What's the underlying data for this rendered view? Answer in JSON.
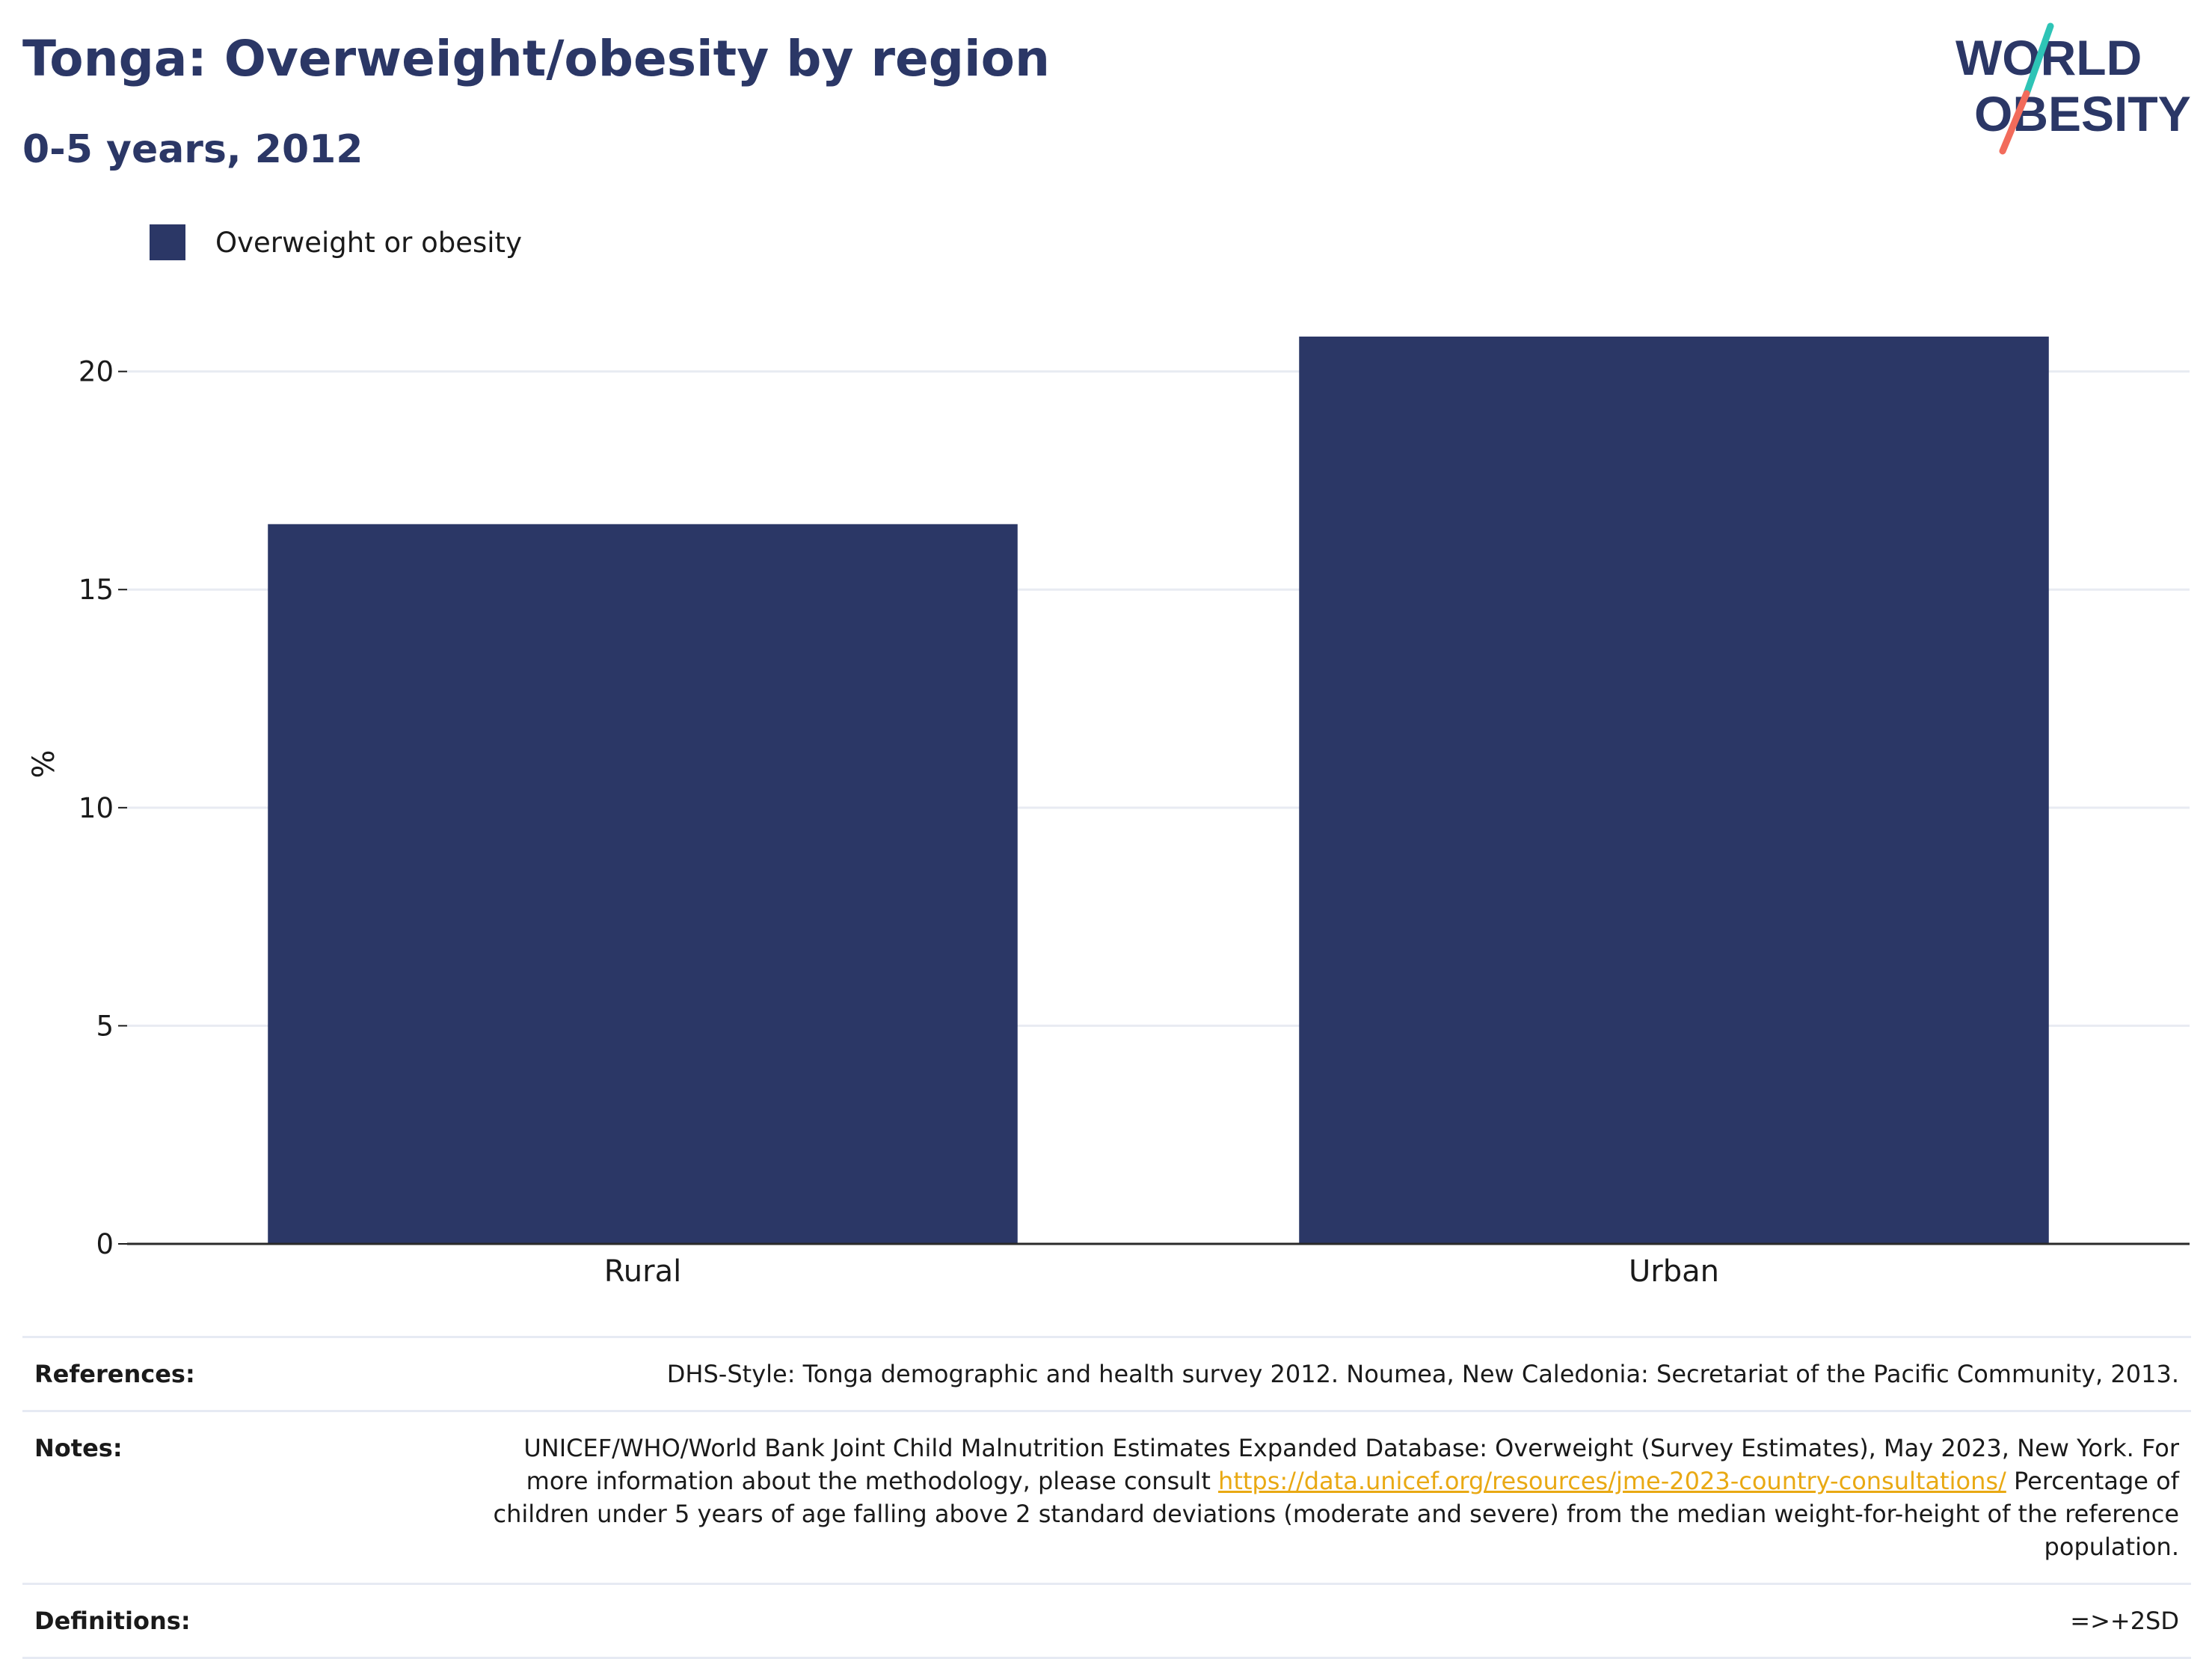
{
  "header": {
    "title": "Tonga: Overweight/obesity by region",
    "subtitle": "0-5 years, 2012"
  },
  "logo": {
    "line1": "WORLD",
    "line2": "OBESITY",
    "colors": {
      "text": "#2b3766",
      "slash_top": "#2ec4b6",
      "slash_bottom": "#f26b5b"
    }
  },
  "legend": {
    "label": "Overweight or obesity",
    "color": "#2b3766"
  },
  "chart_data": {
    "type": "bar",
    "categories": [
      "Rural",
      "Urban"
    ],
    "series": [
      {
        "name": "Overweight or obesity",
        "values": [
          16.5,
          20.8
        ],
        "color": "#2b3766"
      }
    ],
    "ylabel": "%",
    "ylim": [
      0,
      22
    ],
    "yticks": [
      0,
      5,
      10,
      15,
      20
    ],
    "grid": true,
    "legend_position": "top-left"
  },
  "footer": {
    "references_label": "References:",
    "references_text": "DHS-Style: Tonga demographic and health survey 2012. Noumea, New Caledonia: Secretariat of the Pacific Community, 2013.",
    "notes_label": "Notes:",
    "notes_text_1": "UNICEF/WHO/World Bank Joint Child Malnutrition Estimates Expanded Database: Overweight (Survey Estimates), May 2023, New York. For more information about the methodology, please consult ",
    "notes_link": "https://data.unicef.org/resources/jme-2023-country-consultations/",
    "notes_text_2": "Percentage of children under 5 years of age falling above 2 standard deviations (moderate and severe) from the median weight-for-height of the reference population.",
    "definitions_label": "Definitions:",
    "definitions_text": "=>+2SD"
  }
}
